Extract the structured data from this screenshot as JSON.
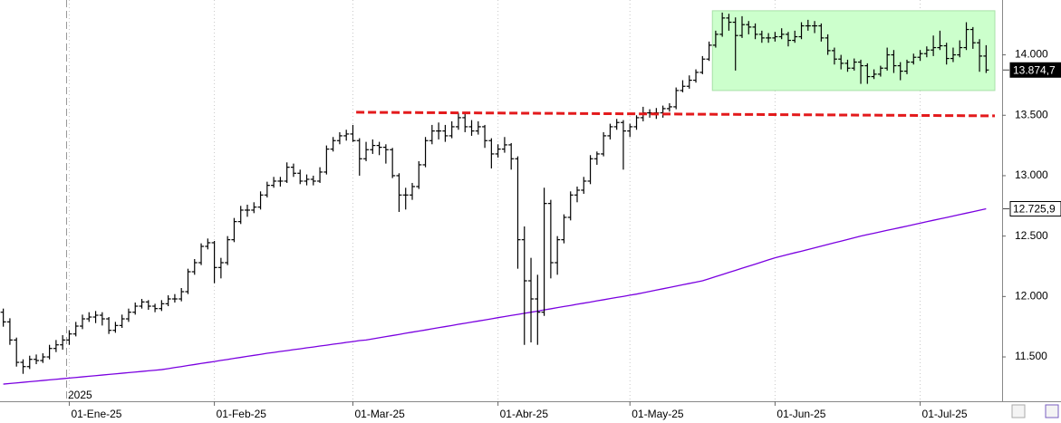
{
  "chart_data": {
    "type": "ohlc",
    "categories": [
      null,
      null,
      null,
      null,
      null,
      null,
      null,
      null,
      null,
      null,
      "01-Ene-25",
      null,
      null,
      null,
      null,
      null,
      null,
      null,
      null,
      null,
      null,
      null,
      null,
      null,
      null,
      null,
      null,
      null,
      null,
      null,
      null,
      null,
      "01-Feb-25",
      null,
      null,
      null,
      null,
      null,
      null,
      null,
      null,
      null,
      null,
      null,
      null,
      null,
      null,
      null,
      null,
      null,
      null,
      null,
      null,
      "01-Mar-25",
      null,
      null,
      null,
      null,
      null,
      null,
      null,
      null,
      null,
      null,
      null,
      null,
      null,
      null,
      null,
      null,
      null,
      null,
      null,
      null,
      null,
      "01-Abr-25",
      null,
      null,
      null,
      null,
      null,
      null,
      null,
      null,
      null,
      null,
      null,
      null,
      null,
      null,
      null,
      null,
      null,
      null,
      null,
      "01-May-25",
      null,
      null,
      null,
      null,
      null,
      null,
      null,
      null,
      null,
      null,
      null,
      null,
      null,
      null,
      null,
      null,
      null,
      null,
      null,
      null,
      null,
      "01-Jun-25",
      null,
      null,
      null,
      null,
      null,
      null,
      null,
      null,
      null,
      null,
      null,
      null,
      null,
      null,
      null,
      null,
      null,
      null,
      null,
      null,
      null,
      "01-Jul-25",
      null,
      null,
      null,
      null,
      null,
      null,
      null,
      null,
      null,
      null
    ],
    "year_label": "2025",
    "color": "#000000",
    "ohlc": [
      [
        11870,
        11900,
        11750,
        11790
      ],
      [
        11790,
        11820,
        11600,
        11640
      ],
      [
        11640,
        11660,
        11420,
        11455
      ],
      [
        11455,
        11480,
        11360,
        11420
      ],
      [
        11420,
        11510,
        11400,
        11480
      ],
      [
        11480,
        11520,
        11440,
        11470
      ],
      [
        11470,
        11530,
        11450,
        11500
      ],
      [
        11500,
        11600,
        11480,
        11570
      ],
      [
        11570,
        11640,
        11540,
        11600
      ],
      [
        11600,
        11680,
        11560,
        11640
      ],
      [
        11640,
        11720,
        11600,
        11690
      ],
      [
        11690,
        11790,
        11670,
        11755
      ],
      [
        11755,
        11850,
        11730,
        11815
      ],
      [
        11815,
        11870,
        11790,
        11830
      ],
      [
        11830,
        11880,
        11780,
        11845
      ],
      [
        11845,
        11870,
        11760,
        11815
      ],
      [
        11815,
        11830,
        11690,
        11720
      ],
      [
        11720,
        11790,
        11700,
        11760
      ],
      [
        11760,
        11850,
        11740,
        11815
      ],
      [
        11815,
        11900,
        11790,
        11870
      ],
      [
        11870,
        11950,
        11850,
        11920
      ],
      [
        11920,
        11980,
        11900,
        11955
      ],
      [
        11955,
        11970,
        11890,
        11920
      ],
      [
        11920,
        11940,
        11870,
        11900
      ],
      [
        11900,
        11970,
        11880,
        11940
      ],
      [
        11940,
        12010,
        11920,
        11980
      ],
      [
        11980,
        12020,
        11950,
        11980
      ],
      [
        11980,
        12070,
        11960,
        12040
      ],
      [
        12040,
        12230,
        12020,
        12205
      ],
      [
        12205,
        12310,
        12180,
        12280
      ],
      [
        12280,
        12440,
        12260,
        12415
      ],
      [
        12415,
        12480,
        12390,
        12445
      ],
      [
        12445,
        12460,
        12110,
        12240
      ],
      [
        12240,
        12320,
        12150,
        12280
      ],
      [
        12280,
        12500,
        12260,
        12470
      ],
      [
        12470,
        12650,
        12450,
        12620
      ],
      [
        12620,
        12750,
        12600,
        12715
      ],
      [
        12715,
        12760,
        12660,
        12715
      ],
      [
        12715,
        12780,
        12690,
        12740
      ],
      [
        12740,
        12870,
        12720,
        12840
      ],
      [
        12840,
        12950,
        12820,
        12920
      ],
      [
        12920,
        12990,
        12900,
        12955
      ],
      [
        12955,
        12990,
        12910,
        12955
      ],
      [
        12955,
        13110,
        12940,
        13070
      ],
      [
        13070,
        13100,
        12990,
        13020
      ],
      [
        13020,
        13050,
        12930,
        12955
      ],
      [
        12955,
        13010,
        12920,
        12970
      ],
      [
        12970,
        13000,
        12920,
        12955
      ],
      [
        12955,
        13070,
        12940,
        13030
      ],
      [
        13030,
        13250,
        13010,
        13220
      ],
      [
        13220,
        13320,
        13200,
        13290
      ],
      [
        13290,
        13360,
        13260,
        13330
      ],
      [
        13330,
        13380,
        13290,
        13345
      ],
      [
        13345,
        13420,
        13280,
        13290
      ],
      [
        13290,
        13310,
        13000,
        13140
      ],
      [
        13140,
        13280,
        13120,
        13215
      ],
      [
        13215,
        13300,
        13180,
        13250
      ],
      [
        13250,
        13280,
        13170,
        13235
      ],
      [
        13235,
        13260,
        13100,
        13215
      ],
      [
        13215,
        13230,
        12980,
        13000
      ],
      [
        13000,
        13020,
        12700,
        12840
      ],
      [
        12840,
        12900,
        12720,
        12840
      ],
      [
        12840,
        12940,
        12800,
        12910
      ],
      [
        12910,
        13120,
        12890,
        13090
      ],
      [
        13090,
        13320,
        13070,
        13290
      ],
      [
        13290,
        13420,
        13260,
        13370
      ],
      [
        13370,
        13440,
        13300,
        13370
      ],
      [
        13370,
        13420,
        13280,
        13330
      ],
      [
        13330,
        13450,
        13310,
        13405
      ],
      [
        13405,
        13520,
        13380,
        13480
      ],
      [
        13480,
        13510,
        13360,
        13405
      ],
      [
        13405,
        13460,
        13330,
        13370
      ],
      [
        13370,
        13450,
        13340,
        13405
      ],
      [
        13405,
        13420,
        13230,
        13290
      ],
      [
        13290,
        13310,
        13060,
        13180
      ],
      [
        13180,
        13260,
        13150,
        13220
      ],
      [
        13220,
        13320,
        13190,
        13255
      ],
      [
        13255,
        13270,
        13050,
        13140
      ],
      [
        13140,
        13160,
        12230,
        12470
      ],
      [
        12470,
        12580,
        11600,
        12130
      ],
      [
        12130,
        12320,
        11620,
        11980
      ],
      [
        11980,
        12180,
        11600,
        11870
      ],
      [
        11870,
        12900,
        11840,
        12770
      ],
      [
        12770,
        12800,
        12150,
        12280
      ],
      [
        12280,
        12500,
        12180,
        12470
      ],
      [
        12470,
        12680,
        12440,
        12655
      ],
      [
        12655,
        12870,
        12630,
        12840
      ],
      [
        12840,
        12910,
        12780,
        12880
      ],
      [
        12880,
        12990,
        12850,
        12955
      ],
      [
        12955,
        13170,
        12930,
        13140
      ],
      [
        13140,
        13200,
        13090,
        13180
      ],
      [
        13180,
        13360,
        13160,
        13330
      ],
      [
        13330,
        13430,
        13300,
        13405
      ],
      [
        13405,
        13470,
        13380,
        13440
      ],
      [
        13440,
        13460,
        13050,
        13370
      ],
      [
        13370,
        13430,
        13320,
        13405
      ],
      [
        13405,
        13500,
        13380,
        13480
      ],
      [
        13480,
        13570,
        13450,
        13520
      ],
      [
        13520,
        13550,
        13480,
        13520
      ],
      [
        13520,
        13560,
        13470,
        13520
      ],
      [
        13520,
        13580,
        13480,
        13555
      ],
      [
        13555,
        13600,
        13530,
        13570
      ],
      [
        13570,
        13730,
        13550,
        13705
      ],
      [
        13705,
        13790,
        13690,
        13740
      ],
      [
        13740,
        13830,
        13720,
        13790
      ],
      [
        13790,
        13880,
        13770,
        13855
      ],
      [
        13855,
        13990,
        13840,
        13965
      ],
      [
        13965,
        14110,
        13950,
        14080
      ],
      [
        14080,
        14200,
        14060,
        14170
      ],
      [
        14170,
        14350,
        14150,
        14305
      ],
      [
        14305,
        14340,
        14200,
        14270
      ],
      [
        14270,
        14310,
        13870,
        14160
      ],
      [
        14160,
        14320,
        14140,
        14250
      ],
      [
        14250,
        14280,
        14170,
        14230
      ],
      [
        14230,
        14260,
        14130,
        14170
      ],
      [
        14170,
        14200,
        14100,
        14140
      ],
      [
        14140,
        14180,
        14100,
        14140
      ],
      [
        14140,
        14190,
        14110,
        14150
      ],
      [
        14150,
        14220,
        14130,
        14170
      ],
      [
        14170,
        14190,
        14070,
        14120
      ],
      [
        14120,
        14200,
        14100,
        14150
      ],
      [
        14150,
        14270,
        14130,
        14240
      ],
      [
        14240,
        14290,
        14200,
        14240
      ],
      [
        14240,
        14280,
        14180,
        14240
      ],
      [
        14240,
        14260,
        14110,
        14140
      ],
      [
        14140,
        14170,
        14000,
        14035
      ],
      [
        14035,
        14060,
        13920,
        13965
      ],
      [
        13965,
        14000,
        13880,
        13930
      ],
      [
        13930,
        13960,
        13860,
        13890
      ],
      [
        13890,
        13970,
        13870,
        13940
      ],
      [
        13940,
        13960,
        13760,
        13910
      ],
      [
        13910,
        13930,
        13760,
        13820
      ],
      [
        13820,
        13880,
        13800,
        13840
      ],
      [
        13840,
        13910,
        13820,
        13890
      ],
      [
        13890,
        14060,
        13870,
        14000
      ],
      [
        14000,
        14040,
        13850,
        13910
      ],
      [
        13910,
        13940,
        13790,
        13865
      ],
      [
        13865,
        13960,
        13840,
        13940
      ],
      [
        13940,
        14010,
        13920,
        13980
      ],
      [
        13980,
        14040,
        13950,
        14010
      ],
      [
        14010,
        14070,
        13980,
        14040
      ],
      [
        14040,
        14160,
        13990,
        14060
      ],
      [
        14060,
        14200,
        14040,
        14075
      ],
      [
        14075,
        14100,
        13920,
        13970
      ],
      [
        13970,
        14060,
        13940,
        14000
      ],
      [
        14000,
        14120,
        13980,
        14060
      ],
      [
        14060,
        14270,
        14040,
        14210
      ],
      [
        14210,
        14230,
        14050,
        14100
      ],
      [
        14100,
        14130,
        13860,
        13990
      ],
      [
        13990,
        14080,
        13850,
        13874.7
      ]
    ],
    "moving_average": {
      "color": "#7a00e0",
      "values": [
        11275,
        11280,
        11285,
        11290,
        11295,
        11300,
        11305,
        11310,
        11315,
        11320,
        11325,
        11330,
        11335,
        11340,
        11345,
        11350,
        11355,
        11360,
        11365,
        11370,
        11375,
        11380,
        11385,
        11390,
        11395,
        11403,
        11412,
        11420,
        11429,
        11437,
        11446,
        11454,
        11462,
        11471,
        11479,
        11488,
        11496,
        11505,
        11513,
        11521,
        11530,
        11537,
        11545,
        11552,
        11560,
        11567,
        11575,
        11582,
        11590,
        11597,
        11605,
        11612,
        11620,
        11627,
        11635,
        11640,
        11649,
        11659,
        11668,
        11677,
        11686,
        11696,
        11705,
        11714,
        11723,
        11733,
        11742,
        11751,
        11760,
        11770,
        11779,
        11788,
        11797,
        11806,
        11815,
        11825,
        11834,
        11843,
        11852,
        11861,
        11870,
        11879,
        11889,
        11898,
        11908,
        11917,
        11926,
        11936,
        11945,
        11954,
        11964,
        11973,
        11983,
        11992,
        12001,
        12011,
        12020,
        12031,
        12042,
        12053,
        12064,
        12075,
        12086,
        12097,
        12108,
        12119,
        12130,
        12147,
        12165,
        12182,
        12199,
        12216,
        12234,
        12251,
        12268,
        12286,
        12303,
        12320,
        12334,
        12348,
        12362,
        12375,
        12389,
        12403,
        12417,
        12431,
        12445,
        12458,
        12472,
        12486,
        12500,
        12512,
        12524,
        12536,
        12548,
        12559,
        12571,
        12583,
        12595,
        12607,
        12619,
        12631,
        12643,
        12654,
        12666,
        12678,
        12690,
        12702,
        12714,
        12725.9
      ]
    },
    "resistance": {
      "color": "#e31a1c",
      "values": [
        13525,
        13495
      ]
    },
    "range_box": {
      "color": "#ccffcc",
      "values": [
        13705,
        14365
      ]
    },
    "ylim": [
      11133,
      14454
    ],
    "yticks": [
      {
        "value": 11500,
        "label": "11.500"
      },
      {
        "value": 12000,
        "label": "12.000"
      },
      {
        "value": 12500,
        "label": "12.500"
      },
      {
        "value": 13000,
        "label": "13.000"
      },
      {
        "value": 13500,
        "label": "13.500"
      },
      {
        "value": 14000,
        "label": "14.000"
      }
    ],
    "price_tags": [
      {
        "value": 13874.7,
        "label": "13.874,7"
      },
      {
        "value": 12725.9,
        "label": "12.725,9"
      }
    ]
  }
}
